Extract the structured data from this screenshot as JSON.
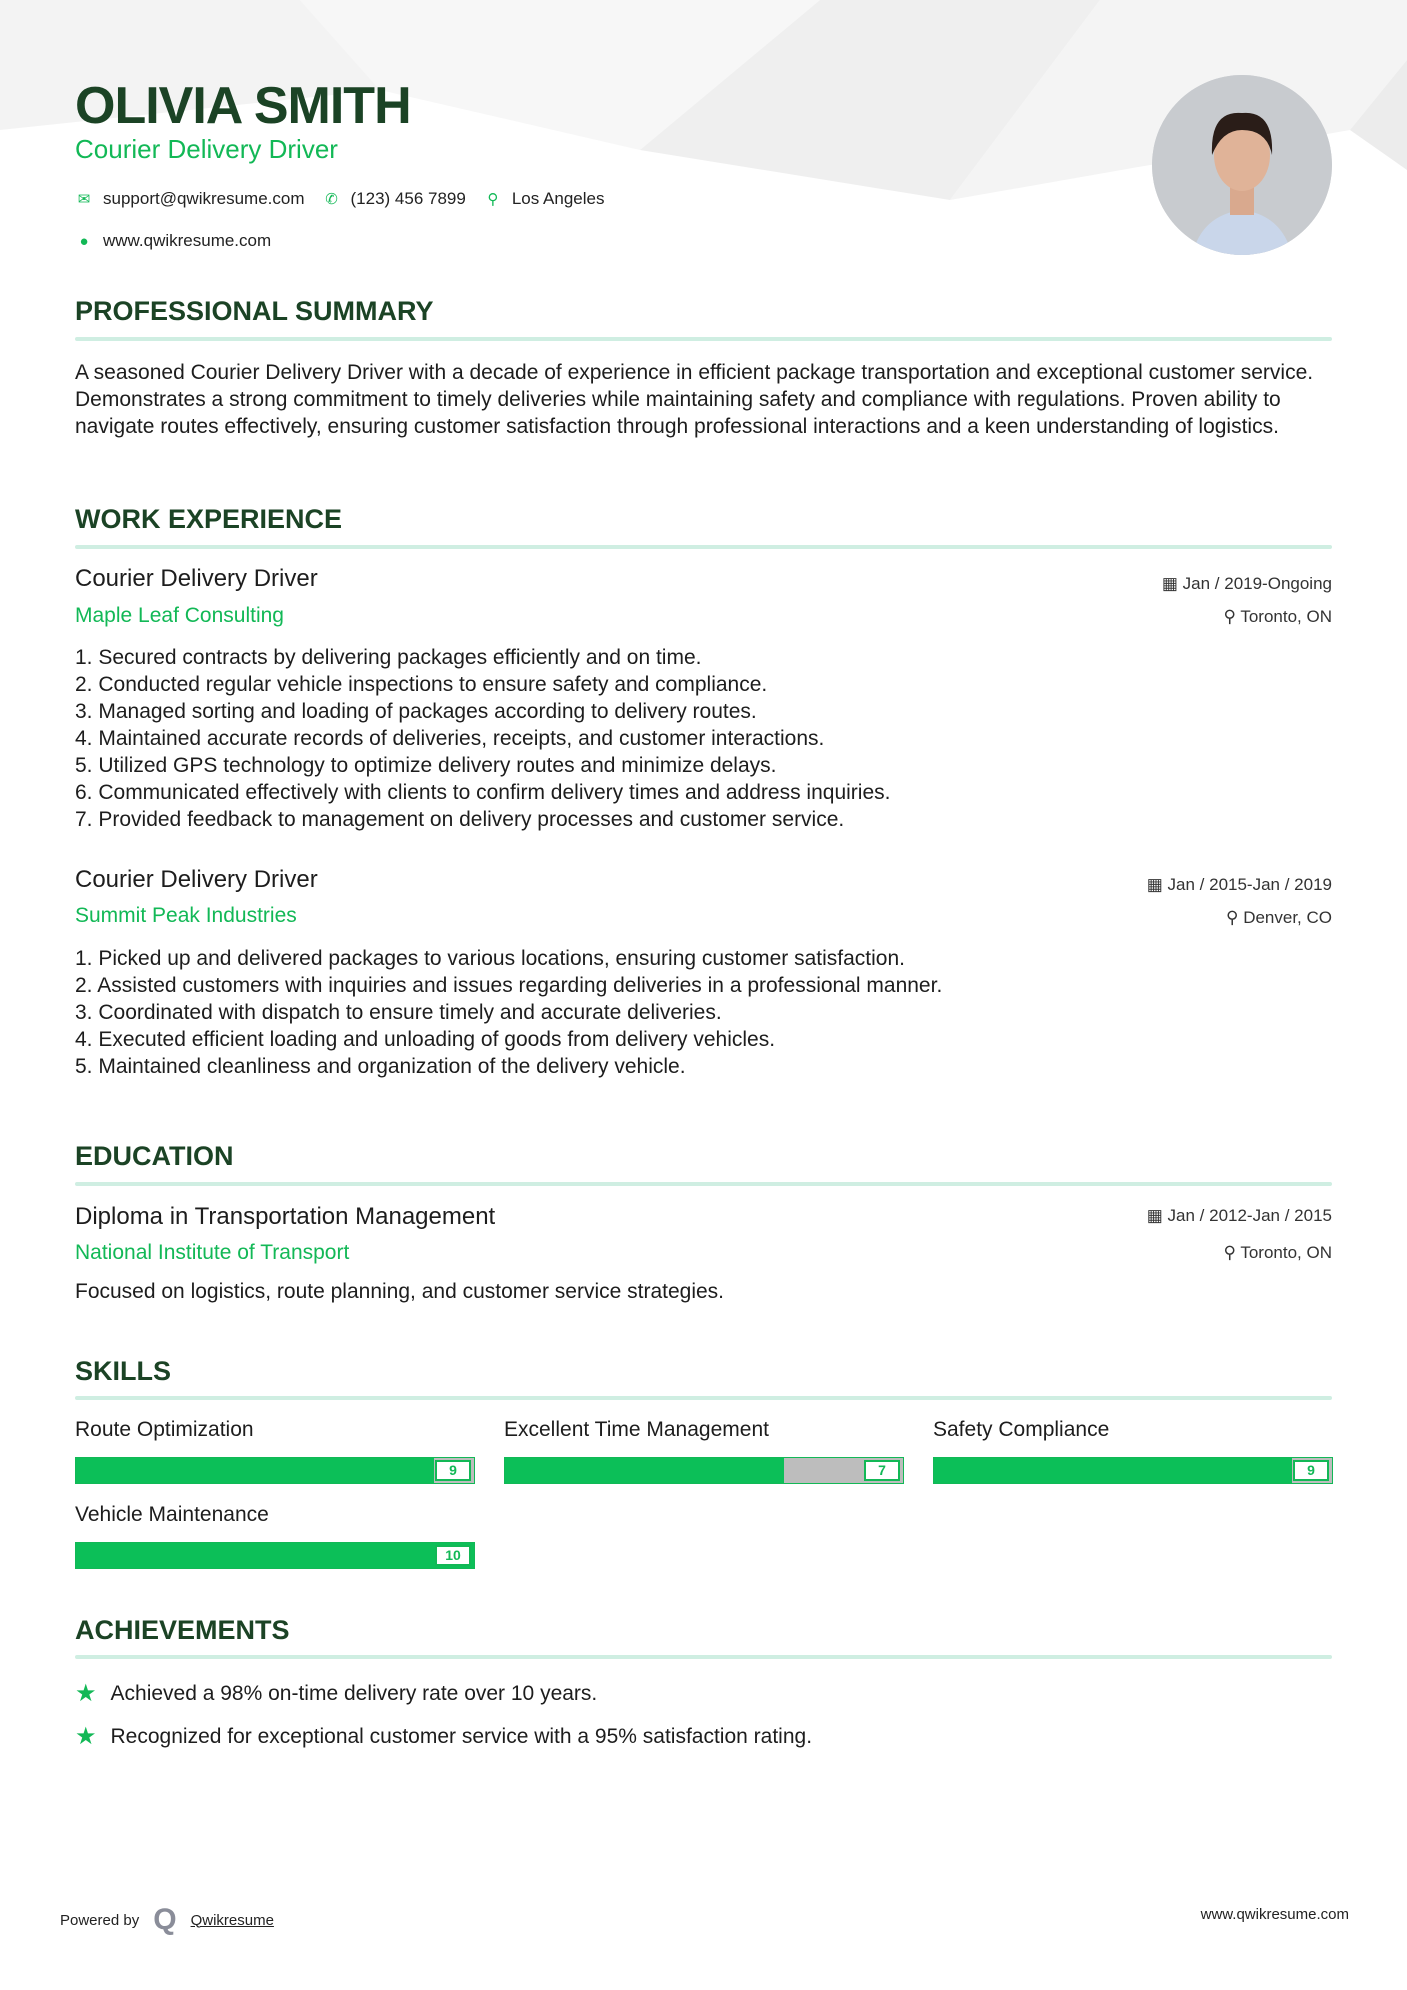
{
  "header": {
    "name": "OLIVIA SMITH",
    "title": "Courier Delivery Driver",
    "email": "support@qwikresume.com",
    "phone": "(123) 456 7899",
    "location": "Los Angeles",
    "website": "www.qwikresume.com"
  },
  "summary": {
    "heading": "PROFESSIONAL SUMMARY",
    "text": "A seasoned Courier Delivery Driver with a decade of experience in efficient package transportation and exceptional customer service. Demonstrates a strong commitment to timely deliveries while maintaining safety and compliance with regulations. Proven ability to navigate routes effectively, ensuring customer satisfaction through professional interactions and a keen understanding of logistics."
  },
  "experience": {
    "heading": "WORK EXPERIENCE",
    "jobs": [
      {
        "title": "Courier Delivery Driver",
        "company": "Maple Leaf Consulting",
        "dates": "Jan / 2019-Ongoing",
        "location": "Toronto, ON",
        "items": [
          "1. Secured contracts by delivering packages efficiently and on time.",
          "2. Conducted regular vehicle inspections to ensure safety and compliance.",
          "3. Managed sorting and loading of packages according to delivery routes.",
          "4. Maintained accurate records of deliveries, receipts, and customer interactions.",
          "5. Utilized GPS technology to optimize delivery routes and minimize delays.",
          "6. Communicated effectively with clients to confirm delivery times and address inquiries.",
          "7. Provided feedback to management on delivery processes and customer service."
        ]
      },
      {
        "title": "Courier Delivery Driver",
        "company": "Summit Peak Industries",
        "dates": "Jan / 2015-Jan / 2019",
        "location": "Denver, CO",
        "items": [
          "1. Picked up and delivered packages to various locations, ensuring customer satisfaction.",
          "2. Assisted customers with inquiries and issues regarding deliveries in a professional manner.",
          "3. Coordinated with dispatch to ensure timely and accurate deliveries.",
          "4. Executed efficient loading and unloading of goods from delivery vehicles.",
          "5. Maintained cleanliness and organization of the delivery vehicle."
        ]
      }
    ]
  },
  "education": {
    "heading": "EDUCATION",
    "degree": "Diploma in Transportation Management",
    "school": "National Institute of Transport",
    "dates": "Jan / 2012-Jan / 2015",
    "location": "Toronto, ON",
    "description": "Focused on logistics, route planning, and customer service strategies."
  },
  "skills": {
    "heading": "SKILLS",
    "items": [
      {
        "name": "Route Optimization",
        "level": "9"
      },
      {
        "name": "Excellent Time Management",
        "level": "7"
      },
      {
        "name": "Safety Compliance",
        "level": "9"
      },
      {
        "name": "Vehicle Maintenance",
        "level": "10"
      }
    ],
    "max": 10
  },
  "achievements": {
    "heading": "ACHIEVEMENTS",
    "items": [
      "Achieved a 98% on-time delivery rate over 10 years.",
      "Recognized for exceptional customer service with a 95% satisfaction rating."
    ]
  },
  "footer": {
    "powered_by": "Powered by",
    "brand": "Qwikresume",
    "website": "www.qwikresume.com"
  },
  "colors": {
    "accent": "#12b856",
    "heading": "#1b4325",
    "rule": "#cfeee2"
  }
}
